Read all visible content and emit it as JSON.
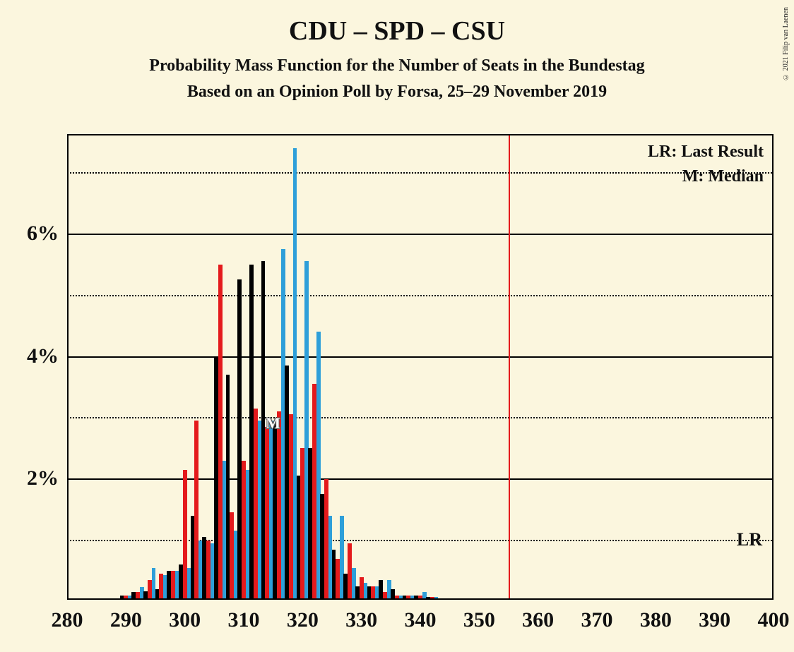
{
  "copyright": "© 2021 Filip van Laenen",
  "title": "CDU – SPD – CSU",
  "subtitle1": "Probability Mass Function for the Number of Seats in the Bundestag",
  "subtitle2": "Based on an Opinion Poll by Forsa, 25–29 November 2019",
  "legend": {
    "lr": "LR: Last Result",
    "m": "M: Median"
  },
  "lr_axis_label": "LR",
  "m_label": "M",
  "chart": {
    "type": "grouped-bar",
    "background_color": "#fbf6de",
    "text_color": "#111111",
    "grid_color_solid": "#000000",
    "grid_color_dotted": "#000000",
    "xmin": 280,
    "xmax": 400,
    "xtick_step": 10,
    "ymin": 0,
    "ymax": 7.6,
    "ytick_major": [
      2,
      4,
      6
    ],
    "ytick_minor": [
      1,
      3,
      5,
      7
    ],
    "lr_line_y": 1.0,
    "lr_vertical_x": 355,
    "lr_vertical_color": "#e41a1c",
    "median_x": 315,
    "median_y": 2.9,
    "bar_width_units": 0.7,
    "series": [
      {
        "name": "black",
        "color": "#000000"
      },
      {
        "name": "red",
        "color": "#e41a1c"
      },
      {
        "name": "blue",
        "color": "#2e9fd9"
      }
    ],
    "data": [
      {
        "x": 290,
        "black": 0.05,
        "red": 0.05,
        "blue": 0.05
      },
      {
        "x": 292,
        "black": 0.1,
        "red": 0.1,
        "blue": 0.18
      },
      {
        "x": 294,
        "black": 0.12,
        "red": 0.3,
        "blue": 0.5
      },
      {
        "x": 296,
        "black": 0.15,
        "red": 0.4,
        "blue": 0.38
      },
      {
        "x": 298,
        "black": 0.45,
        "red": 0.45,
        "blue": 0.45
      },
      {
        "x": 300,
        "black": 0.55,
        "red": 2.1,
        "blue": 0.5
      },
      {
        "x": 302,
        "black": 1.35,
        "red": 2.9,
        "blue": 0.95
      },
      {
        "x": 304,
        "black": 1.0,
        "red": 0.95,
        "blue": 0.9
      },
      {
        "x": 306,
        "black": 3.95,
        "red": 5.45,
        "blue": 2.25
      },
      {
        "x": 308,
        "black": 3.65,
        "red": 1.4,
        "blue": 1.1
      },
      {
        "x": 310,
        "black": 5.2,
        "red": 2.25,
        "blue": 2.1
      },
      {
        "x": 312,
        "black": 5.45,
        "red": 3.1,
        "blue": 2.9
      },
      {
        "x": 314,
        "black": 5.5,
        "red": 2.8,
        "blue": 2.9
      },
      {
        "x": 316,
        "black": 2.85,
        "red": 3.05,
        "blue": 5.7
      },
      {
        "x": 318,
        "black": 3.8,
        "red": 3.0,
        "blue": 7.35
      },
      {
        "x": 320,
        "black": 2.0,
        "red": 2.45,
        "blue": 5.5
      },
      {
        "x": 322,
        "black": 2.45,
        "red": 3.5,
        "blue": 4.35
      },
      {
        "x": 324,
        "black": 1.7,
        "red": 1.95,
        "blue": 1.35
      },
      {
        "x": 326,
        "black": 0.8,
        "red": 0.65,
        "blue": 1.35
      },
      {
        "x": 328,
        "black": 0.4,
        "red": 0.9,
        "blue": 0.5
      },
      {
        "x": 330,
        "black": 0.2,
        "red": 0.35,
        "blue": 0.25
      },
      {
        "x": 332,
        "black": 0.2,
        "red": 0.2,
        "blue": 0.2
      },
      {
        "x": 334,
        "black": 0.3,
        "red": 0.1,
        "blue": 0.3
      },
      {
        "x": 336,
        "black": 0.15,
        "red": 0.05,
        "blue": 0.05
      },
      {
        "x": 338,
        "black": 0.05,
        "red": 0.05,
        "blue": 0.05
      },
      {
        "x": 340,
        "black": 0.05,
        "red": 0.05,
        "blue": 0.1
      },
      {
        "x": 342,
        "black": 0.02,
        "red": 0.02,
        "blue": 0.02
      }
    ]
  }
}
